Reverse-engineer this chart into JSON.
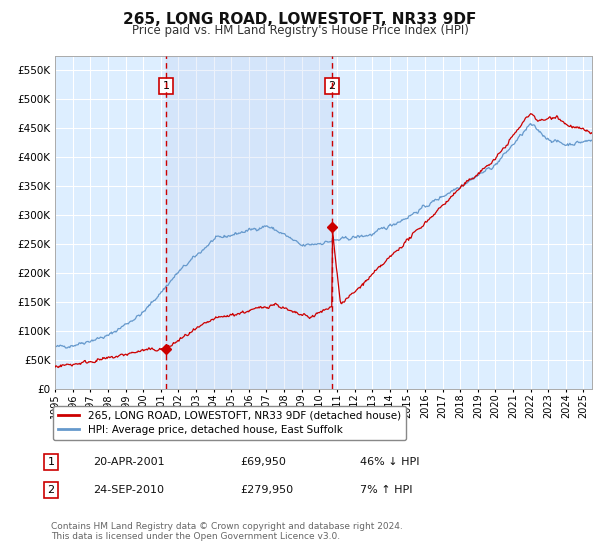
{
  "title": "265, LONG ROAD, LOWESTOFT, NR33 9DF",
  "subtitle": "Price paid vs. HM Land Registry's House Price Index (HPI)",
  "ylim": [
    0,
    575000
  ],
  "yticks": [
    0,
    50000,
    100000,
    150000,
    200000,
    250000,
    300000,
    350000,
    400000,
    450000,
    500000,
    550000
  ],
  "xlim_start": 1995.0,
  "xlim_end": 2025.5,
  "background_color": "#ffffff",
  "plot_bg_color": "#ddeeff",
  "grid_color": "#ffffff",
  "legend_label_red": "265, LONG ROAD, LOWESTOFT, NR33 9DF (detached house)",
  "legend_label_blue": "HPI: Average price, detached house, East Suffolk",
  "footer": "Contains HM Land Registry data © Crown copyright and database right 2024.\nThis data is licensed under the Open Government Licence v3.0.",
  "sale1_x": 2001.3,
  "sale1_y": 69950,
  "sale1_label": "1",
  "sale1_text": "20-APR-2001",
  "sale1_price": "£69,950",
  "sale1_hpi": "46% ↓ HPI",
  "sale2_x": 2010.73,
  "sale2_y": 279950,
  "sale2_label": "2",
  "sale2_text": "24-SEP-2010",
  "sale2_price": "£279,950",
  "sale2_hpi": "7% ↑ HPI",
  "red_color": "#cc0000",
  "blue_color": "#6699cc",
  "marker_box_color": "#cc0000",
  "shade_color": "#c8d8f0"
}
